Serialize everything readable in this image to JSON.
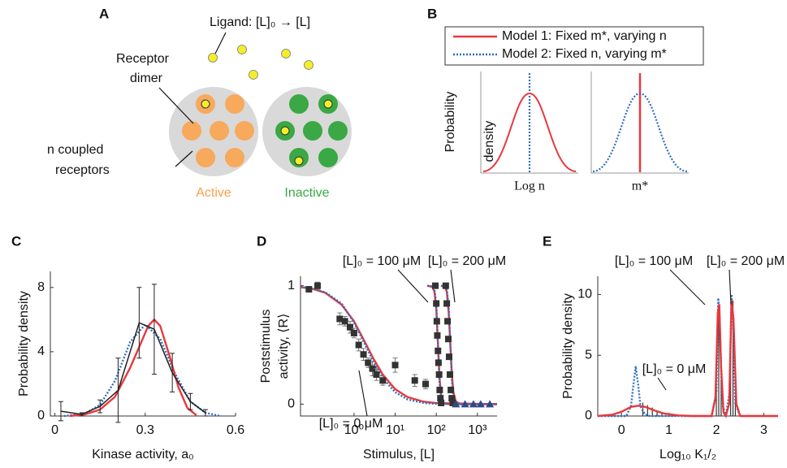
{
  "panel_a": {
    "label": "A",
    "ligand": "Ligand: [L]₀ → [L]",
    "receptor_dimer": [
      "Receptor",
      "dimer"
    ],
    "coupled": [
      "n coupled",
      "receptors"
    ],
    "active": "Active",
    "inactive": "Inactive"
  },
  "panel_b": {
    "label": "B",
    "legend": [
      "Model 1: Fixed m*, varying n",
      "Model 2: Fixed n, varying m*"
    ],
    "ylabel": [
      "Probability",
      "density"
    ],
    "xlabels": [
      "Log n",
      "m*"
    ]
  },
  "chart_data": [
    {
      "type": "line",
      "label": "C",
      "xlabel": "Kinase activity, a₀",
      "ylabel": [
        "Probability density"
      ],
      "xlim": [
        -0.015,
        0.6
      ],
      "ylim": [
        0,
        9
      ],
      "xticks": [
        0,
        0.3,
        0.6
      ],
      "yticks": [
        0,
        4,
        8
      ],
      "series": [
        {
          "style": "dotted",
          "color": "#2f6fbf",
          "x": [
            0.03,
            0.1,
            0.15,
            0.2,
            0.25,
            0.3,
            0.35,
            0.4,
            0.45,
            0.5,
            0.55
          ],
          "values": [
            0,
            0.15,
            0.7,
            2.2,
            4.6,
            5.7,
            4.8,
            2.6,
            0.9,
            0.2,
            0
          ]
        },
        {
          "style": "solid",
          "color": "#e8383d",
          "x": [
            0.05,
            0.1,
            0.15,
            0.2,
            0.25,
            0.28,
            0.31,
            0.33,
            0.35,
            0.38,
            0.41,
            0.44,
            0.47
          ],
          "values": [
            0,
            0.1,
            0.4,
            1.2,
            3.0,
            4.3,
            5.6,
            6.0,
            5.6,
            3.8,
            1.8,
            0.5,
            0.05
          ]
        },
        {
          "style": "line_errors",
          "color": "#222222",
          "x": [
            0.02,
            0.09,
            0.15,
            0.21,
            0.28,
            0.33,
            0.39,
            0.45,
            0.5
          ],
          "values": [
            0.3,
            0.1,
            0.6,
            1.6,
            5.8,
            5.4,
            2.7,
            0.9,
            0.2
          ],
          "errors": [
            0.6,
            0.1,
            0.4,
            2.0,
            2.2,
            2.8,
            1.2,
            0.5,
            0.2
          ]
        }
      ]
    },
    {
      "type": "line",
      "label": "D",
      "xlabel": "Stimulus, [L]",
      "ylabel": [
        "Poststimulus",
        "activity, ⟨R⟩"
      ],
      "xscale": "log",
      "xlim": [
        0.05,
        3000
      ],
      "ylim": [
        -0.1,
        1.08
      ],
      "xticks": [
        {
          "value": 1,
          "label": "10⁰"
        },
        {
          "value": 10,
          "label": "10¹"
        },
        {
          "value": 100,
          "label": "10²"
        },
        {
          "value": 1000,
          "label": "10³"
        }
      ],
      "yticks": [
        0,
        1
      ],
      "annotations": [
        "[L]₀ = 100 μM",
        "[L]₀ = 200 μM",
        "[L]₀ = 0 μM"
      ],
      "series": [
        {
          "style": "solid",
          "color": "#e8383d",
          "x": [
            0.05,
            0.1,
            0.2,
            0.5,
            1,
            2,
            3,
            5,
            10,
            20,
            50,
            100,
            3000
          ],
          "values": [
            0.988,
            0.973,
            0.94,
            0.84,
            0.7,
            0.5,
            0.38,
            0.25,
            0.127,
            0.06,
            0.02,
            0.009,
            0
          ]
        },
        {
          "style": "dotted",
          "color": "#2f6fbf",
          "x": [
            0.05,
            0.1,
            0.2,
            0.5,
            1,
            2,
            3,
            5,
            10,
            20,
            50,
            100,
            3000
          ],
          "values": [
            0.99,
            0.975,
            0.945,
            0.85,
            0.69,
            0.48,
            0.35,
            0.22,
            0.1,
            0.04,
            0.01,
            0.003,
            0
          ]
        },
        {
          "style": "solid",
          "color": "#e8383d",
          "x": [
            60,
            80,
            90,
            100,
            110,
            120,
            130,
            150,
            200,
            3000
          ],
          "values": [
            1,
            0.99,
            0.95,
            0.8,
            0.5,
            0.22,
            0.08,
            0.01,
            0,
            0
          ]
        },
        {
          "style": "dotted",
          "color": "#2f6fbf",
          "x": [
            60,
            80,
            90,
            100,
            110,
            120,
            130,
            150,
            200,
            3000
          ],
          "values": [
            1,
            0.995,
            0.97,
            0.85,
            0.5,
            0.18,
            0.05,
            0.005,
            0,
            0
          ]
        },
        {
          "style": "solid",
          "color": "#e8383d",
          "x": [
            130,
            160,
            180,
            200,
            220,
            240,
            260,
            300,
            400,
            3000
          ],
          "values": [
            1,
            0.99,
            0.95,
            0.78,
            0.5,
            0.25,
            0.1,
            0.02,
            0,
            0
          ]
        },
        {
          "style": "dotted",
          "color": "#2f6fbf",
          "x": [
            130,
            160,
            180,
            200,
            220,
            240,
            260,
            300,
            400,
            3000
          ],
          "values": [
            1,
            0.995,
            0.97,
            0.83,
            0.5,
            0.2,
            0.06,
            0.01,
            0,
            0
          ]
        },
        {
          "style": "squares",
          "color": "#333333",
          "x": [
            0.08,
            0.13,
            0.45,
            0.6,
            0.8,
            1.0,
            1.3,
            1.7,
            2.2,
            2.8,
            3.5,
            5,
            10,
            30,
            55
          ],
          "values": [
            0.97,
            1.0,
            0.72,
            0.7,
            0.65,
            0.6,
            0.5,
            0.42,
            0.35,
            0.3,
            0.25,
            0.2,
            0.33,
            0.2,
            0.17
          ],
          "errors": [
            0.02,
            0.03,
            0.05,
            0.04,
            0.05,
            0.04,
            0.05,
            0.05,
            0.04,
            0.06,
            0.05,
            0.04,
            0.06,
            0.05,
            0.04
          ]
        },
        {
          "style": "squares",
          "color": "#333333",
          "x": [
            95,
            100,
            103,
            106,
            110,
            113,
            117,
            121,
            126,
            131
          ],
          "values": [
            1.0,
            0.85,
            0.7,
            0.58,
            0.45,
            0.35,
            0.25,
            0.12,
            0.05,
            0.01
          ]
        },
        {
          "style": "squares",
          "color": "#333333",
          "x": [
            170,
            180,
            188,
            196,
            205,
            215,
            226,
            238,
            252
          ],
          "values": [
            1,
            0.85,
            0.7,
            0.55,
            0.4,
            0.25,
            0.12,
            0.05,
            0.01
          ]
        },
        {
          "style": "triangles",
          "color": "#2a4a8a",
          "x": [
            300,
            500,
            800,
            1200,
            2000
          ],
          "values": [
            0,
            0,
            0,
            0,
            0
          ]
        }
      ]
    },
    {
      "type": "line",
      "label": "E",
      "xlabel": "Log₁₀ K₁/₂",
      "ylabel": [
        "Probability density"
      ],
      "xlim": [
        -0.5,
        3.3
      ],
      "ylim": [
        0,
        11.5
      ],
      "xticks": [
        0,
        1,
        2,
        3
      ],
      "yticks": [
        0,
        5,
        10
      ],
      "annotations": [
        "[L]₀ = 100 μM",
        "[L]₀ = 200 μM",
        "[L]₀ = 0 μM"
      ],
      "series": [
        {
          "style": "stems",
          "color": "#333333",
          "x": [
            0.45,
            0.55,
            0.65,
            0.75,
            0.85,
            2.0,
            2.05,
            2.1,
            2.3,
            2.35,
            2.4
          ],
          "values": [
            1.1,
            0.9,
            0.7,
            0.4,
            0.2,
            5,
            9,
            3,
            5,
            9.5,
            2
          ]
        },
        {
          "style": "dotted",
          "color": "#2f6fbf",
          "x": [
            -0.5,
            0.1,
            0.2,
            0.25,
            0.3,
            0.35,
            0.4,
            0.5,
            0.6,
            1.0,
            1.9,
            2.0,
            2.04,
            2.07,
            2.12,
            2.2,
            2.28,
            2.32,
            2.35,
            2.4,
            2.5,
            3.3
          ],
          "values": [
            0,
            0,
            0.8,
            2.5,
            4.1,
            2.6,
            0.8,
            0.1,
            0,
            0,
            0,
            2,
            9.7,
            8,
            1,
            0,
            2,
            10,
            8,
            1,
            0,
            0
          ]
        },
        {
          "style": "solid",
          "color": "#e8383d",
          "x": [
            -0.5,
            -0.2,
            0,
            0.2,
            0.35,
            0.5,
            0.7,
            0.9,
            1.2,
            1.5,
            1.9,
            1.98,
            2.03,
            2.06,
            2.1,
            2.15,
            2.2,
            2.27,
            2.32,
            2.36,
            2.42,
            2.5,
            3.3
          ],
          "values": [
            0,
            0.1,
            0.35,
            0.75,
            0.85,
            0.75,
            0.45,
            0.2,
            0.05,
            0,
            0,
            1.5,
            8.5,
            9.2,
            4,
            0.3,
            0,
            1,
            9.5,
            8,
            1,
            0,
            0
          ]
        }
      ]
    }
  ]
}
